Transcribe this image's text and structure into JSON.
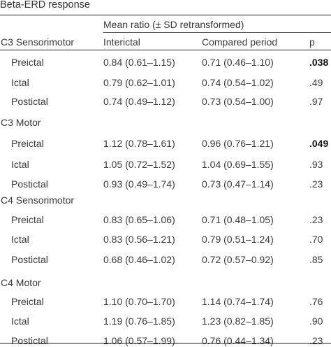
{
  "title": "Beta-ERD response",
  "header": {
    "group": "Mean ratio (± SD retransformed)",
    "interictal": "Interictal",
    "compared": "Compared period",
    "p": "p"
  },
  "groups": [
    {
      "name": "C3 Sensorimotor",
      "rows": [
        {
          "label": "Preictal",
          "interictal": "0.84 (0.61–1.15)",
          "compared": "0.71 (0.46–1.10)",
          "p": ".038",
          "bold": true
        },
        {
          "label": "Ictal",
          "interictal": "0.79 (0.62–1.01)",
          "compared": "0.74 (0.54–1.02)",
          "p": ".49",
          "bold": false
        },
        {
          "label": "Postictal",
          "interictal": "0.74 (0.49–1.12)",
          "compared": "0.73 (0.54–1.00)",
          "p": ".97",
          "bold": false
        }
      ]
    },
    {
      "name": "C3 Motor",
      "rows": [
        {
          "label": "Preictal",
          "interictal": "1.12 (0.78–1.61)",
          "compared": "0.96 (0.76–1.21)",
          "p": ".049",
          "bold": true
        },
        {
          "label": "Ictal",
          "interictal": "1.05 (0.72–1.52)",
          "compared": "1.04 (0.69–1.55)",
          "p": ".93",
          "bold": false
        },
        {
          "label": "Postictal",
          "interictal": "0.93 (0.49–1.74)",
          "compared": "0.73 (0.47–1.14)",
          "p": ".23",
          "bold": false
        }
      ]
    },
    {
      "name": "C4 Sensorimotor",
      "rows": [
        {
          "label": "Preictal",
          "interictal": "0.83 (0.65–1.06)",
          "compared": "0.71 (0.48–1.05)",
          "p": ".23",
          "bold": false
        },
        {
          "label": "Ictal",
          "interictal": "0.83 (0.56–1.21)",
          "compared": "0.79 (0.51–1.24)",
          "p": ".70",
          "bold": false
        },
        {
          "label": "Postictal",
          "interictal": "0.68 (0.46–1.02)",
          "compared": "0.72 (0.57–0.92)",
          "p": ".85",
          "bold": false
        }
      ]
    },
    {
      "name": "C4 Motor",
      "rows": [
        {
          "label": "Preictal",
          "interictal": "1.10 (0.70–1.70)",
          "compared": "1.14 (0.74–1.74)",
          "p": ".76",
          "bold": false
        },
        {
          "label": "Ictal",
          "interictal": "1.19 (0.76–1.85)",
          "compared": "1.23 (0.82–1.85)",
          "p": ".90",
          "bold": false
        },
        {
          "label": "Postictal",
          "interictal": "1.06 (0.57–1.99)",
          "compared": "0.76 (0.44–1.34)",
          "p": ".23",
          "bold": false
        }
      ]
    }
  ]
}
